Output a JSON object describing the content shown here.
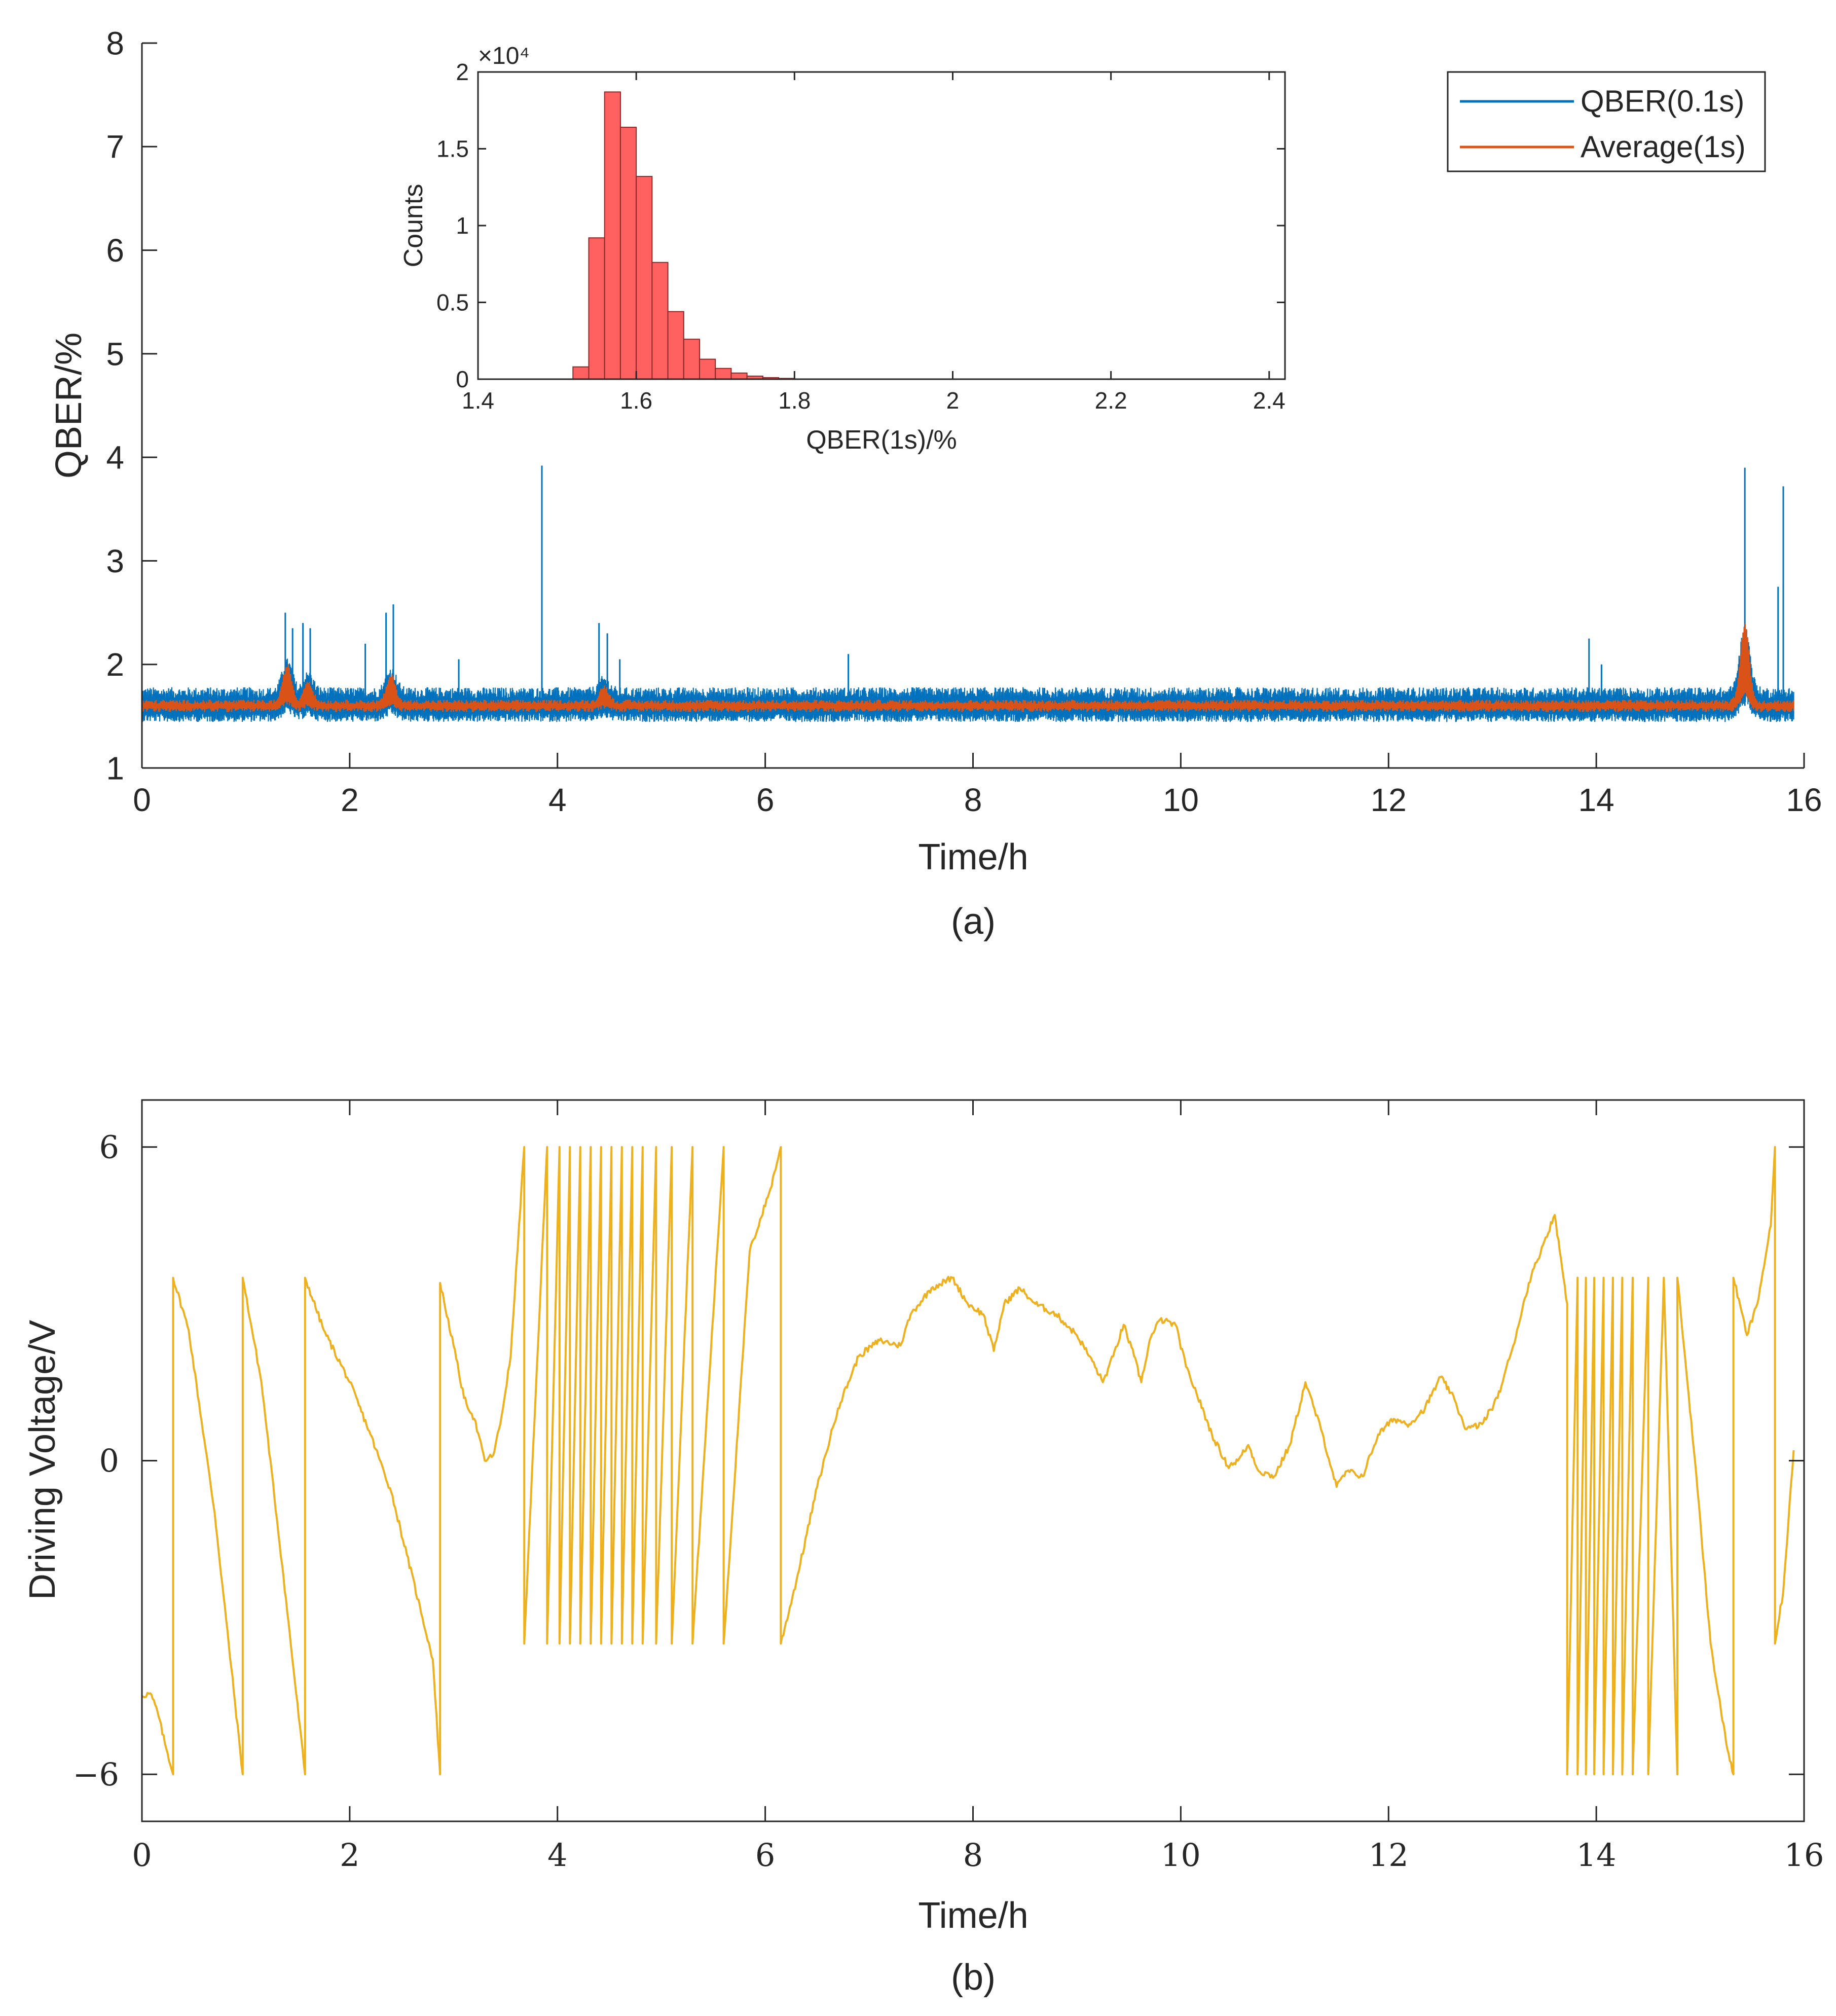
{
  "colors": {
    "qber_series": "#0072BD",
    "average_series": "#D95319",
    "histogram_bars": "#FF6060",
    "voltage_series": "#EDB120",
    "axes": "#262626"
  },
  "chart_data": [
    {
      "id": "a",
      "type": "line",
      "panel_label": "(a)",
      "xlabel": "Time/h",
      "ylabel": "QBER/%",
      "xlim": [
        0,
        16
      ],
      "ylim": [
        1,
        8
      ],
      "xticks": [
        0,
        2,
        4,
        6,
        8,
        10,
        12,
        14,
        16
      ],
      "yticks": [
        1,
        2,
        3,
        4,
        5,
        6,
        7,
        8
      ],
      "grid": false,
      "legend_position": "top-right",
      "series": [
        {
          "name": "QBER(0.1s)",
          "color": "#0072BD",
          "baseline": 1.6,
          "band_halfwidth": 0.12,
          "x_range": [
            0,
            15.9
          ],
          "peaks": [
            {
              "x": 1.38,
              "y": 2.5
            },
            {
              "x": 1.45,
              "y": 2.35
            },
            {
              "x": 1.55,
              "y": 2.4
            },
            {
              "x": 1.62,
              "y": 2.35
            },
            {
              "x": 2.15,
              "y": 2.2
            },
            {
              "x": 2.35,
              "y": 2.5
            },
            {
              "x": 2.42,
              "y": 2.58
            },
            {
              "x": 3.05,
              "y": 2.05
            },
            {
              "x": 3.85,
              "y": 3.92
            },
            {
              "x": 4.4,
              "y": 2.4
            },
            {
              "x": 4.48,
              "y": 2.3
            },
            {
              "x": 4.6,
              "y": 2.05
            },
            {
              "x": 6.8,
              "y": 2.1
            },
            {
              "x": 13.93,
              "y": 2.25
            },
            {
              "x": 14.05,
              "y": 2.0
            },
            {
              "x": 15.43,
              "y": 3.9
            },
            {
              "x": 15.75,
              "y": 2.75
            },
            {
              "x": 15.8,
              "y": 3.72
            }
          ]
        },
        {
          "name": "Average(1s)",
          "color": "#D95319",
          "baseline": 1.6,
          "x_range": [
            0,
            15.9
          ],
          "bumps": [
            {
              "x": 1.4,
              "y": 1.95
            },
            {
              "x": 1.6,
              "y": 1.8
            },
            {
              "x": 2.4,
              "y": 1.85
            },
            {
              "x": 4.45,
              "y": 1.75
            },
            {
              "x": 15.43,
              "y": 2.35
            }
          ]
        }
      ]
    },
    {
      "id": "a-inset",
      "type": "bar",
      "xlabel": "QBER(1s)/%",
      "ylabel": "Counts",
      "xlim": [
        1.4,
        2.42
      ],
      "ylim": [
        0,
        2
      ],
      "y_multiplier": "×10⁴",
      "xticks": [
        1.4,
        1.6,
        1.8,
        2,
        2.2,
        2.4
      ],
      "yticks": [
        0,
        0.5,
        1,
        1.5,
        2
      ],
      "bin_width": 0.02,
      "bins": [
        1.53,
        1.55,
        1.57,
        1.59,
        1.61,
        1.63,
        1.65,
        1.67,
        1.69,
        1.71,
        1.73,
        1.75,
        1.77,
        1.79
      ],
      "values": [
        0.08,
        0.92,
        1.87,
        1.64,
        1.32,
        0.76,
        0.44,
        0.26,
        0.13,
        0.07,
        0.04,
        0.02,
        0.01,
        0.005
      ]
    },
    {
      "id": "b",
      "type": "line",
      "panel_label": "(b)",
      "xlabel": "Time/h",
      "ylabel": "Driving Voltage/V",
      "xlim": [
        0,
        16
      ],
      "ylim": [
        -6.9,
        6.9
      ],
      "xticks": [
        0,
        2,
        4,
        6,
        8,
        10,
        12,
        14,
        16
      ],
      "yticks": [
        -6,
        0,
        6
      ],
      "ytick_labels": [
        "−6",
        "0",
        "6"
      ],
      "grid": false,
      "series": [
        {
          "name": "",
          "color": "#EDB120",
          "points": [
            [
              0,
              -4.5
            ],
            [
              0.08,
              -4.45
            ],
            [
              0.15,
              -4.8
            ],
            [
              0.22,
              -5.4
            ],
            [
              0.3,
              -6
            ],
            [
              0.3,
              3.5
            ],
            [
              0.45,
              2.5
            ],
            [
              0.7,
              -1
            ],
            [
              0.97,
              -6
            ],
            [
              0.97,
              3.5
            ],
            [
              1.15,
              1.5
            ],
            [
              1.35,
              -2
            ],
            [
              1.57,
              -6
            ],
            [
              1.57,
              3.5
            ],
            [
              1.75,
              2.5
            ],
            [
              2.0,
              1.5
            ],
            [
              2.2,
              0.5
            ],
            [
              2.4,
              -0.6
            ],
            [
              2.55,
              -1.8
            ],
            [
              2.7,
              -3.0
            ],
            [
              2.8,
              -3.8
            ],
            [
              2.87,
              -6
            ],
            [
              2.87,
              3.4
            ],
            [
              3.0,
              2.2
            ],
            [
              3.1,
              1.2
            ],
            [
              3.2,
              0.8
            ],
            [
              3.3,
              0
            ],
            [
              3.38,
              0.1
            ],
            [
              3.45,
              0.7
            ],
            [
              3.55,
              2.0
            ],
            [
              3.63,
              4.5
            ],
            [
              3.68,
              6
            ],
            [
              3.68,
              -3.5
            ],
            [
              3.9,
              6
            ],
            [
              3.9,
              -3.5
            ],
            [
              4.02,
              6
            ],
            [
              4.02,
              -3.5
            ],
            [
              4.12,
              6
            ],
            [
              4.12,
              -3.5
            ],
            [
              4.22,
              6
            ],
            [
              4.22,
              -3.5
            ],
            [
              4.32,
              6
            ],
            [
              4.32,
              -3.5
            ],
            [
              4.42,
              6
            ],
            [
              4.42,
              -3.5
            ],
            [
              4.52,
              6
            ],
            [
              4.52,
              -3.5
            ],
            [
              4.62,
              6
            ],
            [
              4.62,
              -3.5
            ],
            [
              4.72,
              6
            ],
            [
              4.72,
              -3.5
            ],
            [
              4.82,
              6
            ],
            [
              4.82,
              -3.5
            ],
            [
              4.95,
              6
            ],
            [
              4.95,
              -3.5
            ],
            [
              5.1,
              6
            ],
            [
              5.1,
              -3.5
            ],
            [
              5.3,
              6
            ],
            [
              5.3,
              -3.5
            ],
            [
              5.6,
              6
            ],
            [
              5.6,
              -3.5
            ],
            [
              5.85,
              4
            ],
            [
              6.05,
              5.2
            ],
            [
              6.15,
              6
            ],
            [
              6.15,
              -3.5
            ],
            [
              6.3,
              -2.3
            ],
            [
              6.5,
              -0.5
            ],
            [
              6.7,
              1.0
            ],
            [
              6.9,
              2.0
            ],
            [
              7.1,
              2.3
            ],
            [
              7.3,
              2.2
            ],
            [
              7.4,
              2.8
            ],
            [
              7.6,
              3.3
            ],
            [
              7.8,
              3.5
            ],
            [
              7.95,
              3.0
            ],
            [
              8.1,
              2.8
            ],
            [
              8.2,
              2.1
            ],
            [
              8.3,
              3.0
            ],
            [
              8.45,
              3.3
            ],
            [
              8.6,
              3.0
            ],
            [
              8.8,
              2.8
            ],
            [
              9.0,
              2.4
            ],
            [
              9.15,
              1.9
            ],
            [
              9.25,
              1.5
            ],
            [
              9.35,
              2.0
            ],
            [
              9.45,
              2.6
            ],
            [
              9.55,
              2.0
            ],
            [
              9.62,
              1.5
            ],
            [
              9.7,
              2.3
            ],
            [
              9.8,
              2.7
            ],
            [
              9.95,
              2.6
            ],
            [
              10.05,
              1.8
            ],
            [
              10.15,
              1.3
            ],
            [
              10.3,
              0.5
            ],
            [
              10.45,
              -0.1
            ],
            [
              10.55,
              0.0
            ],
            [
              10.65,
              0.3
            ],
            [
              10.75,
              -0.2
            ],
            [
              10.9,
              -0.3
            ],
            [
              11.05,
              0.3
            ],
            [
              11.2,
              1.5
            ],
            [
              11.35,
              0.6
            ],
            [
              11.5,
              -0.5
            ],
            [
              11.6,
              -0.2
            ],
            [
              11.75,
              -0.3
            ],
            [
              11.9,
              0.5
            ],
            [
              12.05,
              0.8
            ],
            [
              12.2,
              0.7
            ],
            [
              12.35,
              1.0
            ],
            [
              12.5,
              1.6
            ],
            [
              12.6,
              1.3
            ],
            [
              12.75,
              0.6
            ],
            [
              12.9,
              0.7
            ],
            [
              13.05,
              1.2
            ],
            [
              13.2,
              2.2
            ],
            [
              13.35,
              3.4
            ],
            [
              13.5,
              4.2
            ],
            [
              13.6,
              4.7
            ],
            [
              13.72,
              3.0
            ],
            [
              13.72,
              -6
            ],
            [
              13.82,
              3.5
            ],
            [
              13.82,
              -6
            ],
            [
              13.9,
              3.5
            ],
            [
              13.9,
              -6
            ],
            [
              13.98,
              3.5
            ],
            [
              13.98,
              -6
            ],
            [
              14.07,
              3.5
            ],
            [
              14.07,
              -6
            ],
            [
              14.16,
              3.5
            ],
            [
              14.16,
              -6
            ],
            [
              14.25,
              3.5
            ],
            [
              14.25,
              -6
            ],
            [
              14.35,
              3.5
            ],
            [
              14.35,
              -6
            ],
            [
              14.5,
              3.5
            ],
            [
              14.5,
              -6
            ],
            [
              14.65,
              3.5
            ],
            [
              14.78,
              -6
            ],
            [
              14.78,
              3.5
            ],
            [
              14.95,
              0
            ],
            [
              15.1,
              -3.5
            ],
            [
              15.25,
              -5.4
            ],
            [
              15.32,
              -6
            ],
            [
              15.32,
              3.5
            ],
            [
              15.45,
              2.4
            ],
            [
              15.55,
              3.0
            ],
            [
              15.68,
              4.5
            ],
            [
              15.72,
              6
            ],
            [
              15.72,
              -3.5
            ],
            [
              15.8,
              -2.5
            ],
            [
              15.9,
              0.2
            ]
          ]
        }
      ]
    }
  ],
  "legend": {
    "items": [
      "QBER(0.1s)",
      "Average(1s)"
    ]
  }
}
